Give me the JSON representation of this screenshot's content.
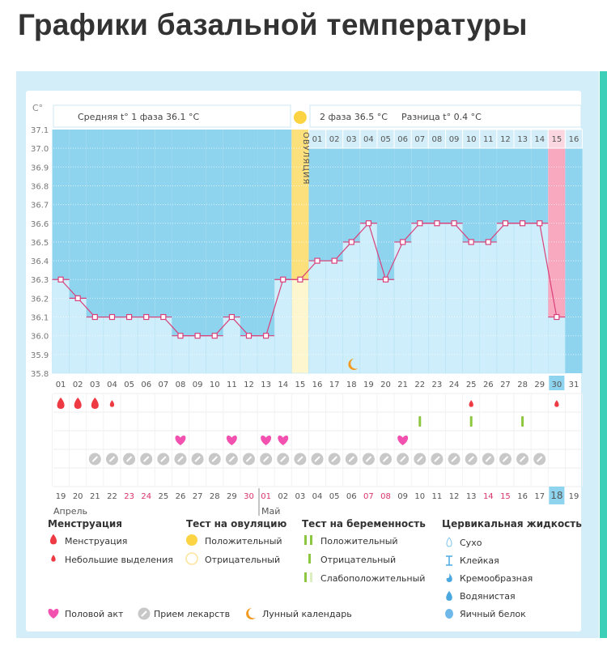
{
  "title": "Графики базальной температуры",
  "colors": {
    "dark_area": "#8fd4ef",
    "light_bar": "#cdeefa",
    "ovulation": "#fbe07c",
    "ovulation_light": "#fdf6cf",
    "period_highlight": "#f8a9c0",
    "line": "#d9407a",
    "weekend": "#d9336b",
    "test_green": "#8dc63f",
    "heart": "#f251b0",
    "drop": "#ee3b43",
    "pill": "#c8c8c8",
    "moon": "#f39a21"
  },
  "chart_data": {
    "type": "line",
    "ylabel": "C°",
    "ylim": [
      35.8,
      37.1
    ],
    "yticks": [
      "37.1",
      "37.0",
      "36.9",
      "36.8",
      "36.7",
      "36.6",
      "36.5",
      "36.4",
      "36.3",
      "36.2",
      "36.1",
      "36.0",
      "35.9",
      "35.8"
    ],
    "cycle_days": [
      "01",
      "02",
      "03",
      "04",
      "05",
      "06",
      "07",
      "08",
      "09",
      "10",
      "11",
      "12",
      "13",
      "14",
      "15",
      "16",
      "17",
      "18",
      "19",
      "20",
      "21",
      "22",
      "23",
      "24",
      "25",
      "26",
      "27",
      "28",
      "29",
      "30",
      "31"
    ],
    "temperatures": [
      36.3,
      36.2,
      36.1,
      36.1,
      36.1,
      36.1,
      36.1,
      36.0,
      36.0,
      36.0,
      36.1,
      36.0,
      36.0,
      36.3,
      36.3,
      36.4,
      36.4,
      36.5,
      36.6,
      36.3,
      36.5,
      36.6,
      36.6,
      36.6,
      36.5,
      36.5,
      36.6,
      36.6,
      36.6,
      36.1,
      null
    ],
    "phase1_label": "Средняя t° 1 фаза 36.1 °C",
    "phase2_label": "2 фаза 36.5 °C",
    "diff_label": "Разница t° 0.4 °C",
    "ovulation_day": "15",
    "ovulation_label": "ОВУЛЯЦИЯ",
    "phase2_days": [
      "01",
      "02",
      "03",
      "04",
      "05",
      "06",
      "07",
      "08",
      "09",
      "10",
      "11",
      "12",
      "13",
      "14",
      "15",
      "16"
    ],
    "highlight_cycle_day": "30",
    "calendar_dates": [
      "19",
      "20",
      "21",
      "22",
      "23",
      "24",
      "25",
      "26",
      "27",
      "28",
      "29",
      "30",
      "01",
      "02",
      "03",
      "04",
      "05",
      "06",
      "07",
      "08",
      "09",
      "10",
      "11",
      "12",
      "13",
      "14",
      "15",
      "16",
      "17",
      "18",
      "19"
    ],
    "weekend_dates_idx": [
      4,
      5,
      11,
      12,
      18,
      19,
      25,
      26
    ],
    "today_date": "18",
    "months": [
      {
        "name": "Апрель"
      },
      {
        "name": "Май"
      }
    ],
    "markers": {
      "menstruation": [
        "01",
        "02",
        "03"
      ],
      "spotting": [
        "04",
        "25",
        "30"
      ],
      "pregnancy_test_negative": [
        "22",
        "25",
        "28"
      ],
      "intercourse": [
        "08",
        "11",
        "13",
        "14",
        "21"
      ],
      "medication": [
        "03",
        "04",
        "05",
        "06",
        "07",
        "08",
        "09",
        "10",
        "11",
        "12",
        "13",
        "14",
        "15",
        "16",
        "17",
        "18",
        "19",
        "20",
        "21",
        "22",
        "23",
        "24",
        "25",
        "26",
        "27",
        "28",
        "29"
      ],
      "lunar": [
        "18"
      ]
    }
  },
  "legend": {
    "menstruation": {
      "title": "Менструация",
      "items": [
        "Менструация",
        "Небольшие выделения"
      ]
    },
    "ovulation_test": {
      "title": "Тест на овуляцию",
      "items": [
        "Положительный",
        "Отрицательный"
      ]
    },
    "pregnancy_test": {
      "title": "Тест на беременность",
      "items": [
        "Положительный",
        "Отрицательный",
        "Слабоположительный"
      ]
    },
    "cervical": {
      "title": "Цервикальная жидкость",
      "items": [
        "Сухо",
        "Клейкая",
        "Кремообразная",
        "Водянистая",
        "Яичный белок"
      ]
    },
    "other": [
      "Половой акт",
      "Прием лекарств",
      "Лунный календарь"
    ]
  }
}
